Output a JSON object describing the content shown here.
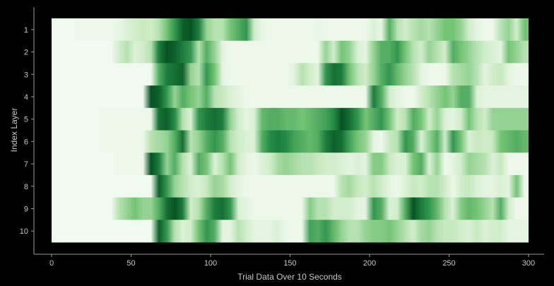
{
  "chart_data": {
    "type": "heatmap",
    "xlabel": "Trial Data Over 10 Seconds",
    "ylabel": "Index Layer",
    "xlim": [
      0,
      300
    ],
    "x_ticks": [
      "0",
      "50",
      "100",
      "150",
      "200",
      "250",
      "300"
    ],
    "x_tick_values": [
      0,
      50,
      100,
      150,
      200,
      250,
      300
    ],
    "rows": [
      "1",
      "2",
      "3",
      "4",
      "5",
      "6",
      "7",
      "8",
      "9",
      "10"
    ],
    "colormap": "Greens",
    "value_range": [
      0,
      1
    ],
    "bin_width": 5,
    "x_bins": [
      0,
      5,
      10,
      15,
      20,
      25,
      30,
      35,
      40,
      45,
      50,
      55,
      60,
      65,
      70,
      75,
      80,
      85,
      90,
      95,
      100,
      105,
      110,
      115,
      120,
      125,
      130,
      135,
      140,
      145,
      150,
      155,
      160,
      165,
      170,
      175,
      180,
      185,
      190,
      195,
      200,
      205,
      210,
      215,
      220,
      225,
      230,
      235,
      240,
      245,
      250,
      255,
      260,
      265,
      270,
      275,
      280,
      285,
      290,
      295
    ],
    "values": [
      [
        0.03,
        0.03,
        0.03,
        0.05,
        0.05,
        0.05,
        0.05,
        0.05,
        0.08,
        0.15,
        0.2,
        0.25,
        0.2,
        0.3,
        0.5,
        0.7,
        0.9,
        0.95,
        0.8,
        0.4,
        0.3,
        0.3,
        0.5,
        0.6,
        0.7,
        0.2,
        0.08,
        0.05,
        0.05,
        0.05,
        0.05,
        0.05,
        0.05,
        0.08,
        0.05,
        0.05,
        0.05,
        0.05,
        0.05,
        0.05,
        0.15,
        0.08,
        0.6,
        0.3,
        0.2,
        0.3,
        0.35,
        0.3,
        0.4,
        0.5,
        0.5,
        0.4,
        0.2,
        0.1,
        0.05,
        0.05,
        0.3,
        0.4,
        0.2,
        0.5
      ],
      [
        0.03,
        0.03,
        0.03,
        0.03,
        0.03,
        0.03,
        0.03,
        0.03,
        0.2,
        0.3,
        0.15,
        0.2,
        0.3,
        0.8,
        0.95,
        0.9,
        0.8,
        0.7,
        0.3,
        0.6,
        0.4,
        0.1,
        0.05,
        0.05,
        0.05,
        0.05,
        0.05,
        0.05,
        0.05,
        0.05,
        0.05,
        0.05,
        0.05,
        0.05,
        0.4,
        0.2,
        0.5,
        0.4,
        0.15,
        0.1,
        0.4,
        0.6,
        0.6,
        0.7,
        0.5,
        0.3,
        0.2,
        0.4,
        0.3,
        0.2,
        0.6,
        0.5,
        0.4,
        0.3,
        0.2,
        0.15,
        0.1,
        0.5,
        0.4,
        0.3
      ],
      [
        0.03,
        0.03,
        0.03,
        0.03,
        0.03,
        0.03,
        0.03,
        0.03,
        0.03,
        0.03,
        0.03,
        0.03,
        0.03,
        0.6,
        0.8,
        0.85,
        0.9,
        0.4,
        0.3,
        0.7,
        0.5,
        0.1,
        0.05,
        0.05,
        0.05,
        0.05,
        0.05,
        0.05,
        0.05,
        0.05,
        0.1,
        0.3,
        0.2,
        0.1,
        0.7,
        0.85,
        0.8,
        0.5,
        0.3,
        0.2,
        0.4,
        0.6,
        0.7,
        0.55,
        0.4,
        0.3,
        0.1,
        0.05,
        0.05,
        0.05,
        0.3,
        0.35,
        0.4,
        0.3,
        0.1,
        0.2,
        0.25,
        0.1,
        0.05,
        0.05
      ],
      [
        0.03,
        0.03,
        0.03,
        0.03,
        0.03,
        0.03,
        0.03,
        0.03,
        0.03,
        0.03,
        0.03,
        0.03,
        0.95,
        0.9,
        0.7,
        0.4,
        0.6,
        0.5,
        0.4,
        0.6,
        0.3,
        0.25,
        0.15,
        0.1,
        0.05,
        0.05,
        0.05,
        0.05,
        0.05,
        0.05,
        0.05,
        0.05,
        0.05,
        0.05,
        0.05,
        0.05,
        0.05,
        0.05,
        0.05,
        0.05,
        0.8,
        0.6,
        0.2,
        0.1,
        0.05,
        0.05,
        0.2,
        0.3,
        0.4,
        0.5,
        0.4,
        0.6,
        0.6,
        0.15,
        0.1,
        0.1,
        0.1,
        0.1,
        0.1,
        0.1
      ],
      [
        0.03,
        0.03,
        0.03,
        0.03,
        0.03,
        0.03,
        0.05,
        0.05,
        0.05,
        0.05,
        0.05,
        0.05,
        0.05,
        0.85,
        0.9,
        0.75,
        0.3,
        0.15,
        0.7,
        0.8,
        0.85,
        0.8,
        0.4,
        0.2,
        0.1,
        0.15,
        0.55,
        0.6,
        0.6,
        0.55,
        0.55,
        0.5,
        0.55,
        0.6,
        0.65,
        0.75,
        0.95,
        0.85,
        0.7,
        0.5,
        0.6,
        0.7,
        0.5,
        0.2,
        0.3,
        0.6,
        0.5,
        0.2,
        0.4,
        0.15,
        0.1,
        0.2,
        0.5,
        0.3,
        0.2,
        0.4,
        0.4,
        0.4,
        0.4,
        0.4
      ],
      [
        0.03,
        0.03,
        0.03,
        0.03,
        0.03,
        0.03,
        0.05,
        0.05,
        0.05,
        0.05,
        0.05,
        0.05,
        0.3,
        0.35,
        0.4,
        0.6,
        0.85,
        0.3,
        0.4,
        0.6,
        0.7,
        0.6,
        0.3,
        0.2,
        0.15,
        0.15,
        0.6,
        0.75,
        0.8,
        0.75,
        0.65,
        0.6,
        0.55,
        0.6,
        0.8,
        0.9,
        0.85,
        0.65,
        0.5,
        0.4,
        0.1,
        0.05,
        0.25,
        0.3,
        0.7,
        0.6,
        0.15,
        0.4,
        0.6,
        0.2,
        0.7,
        0.5,
        0.15,
        0.25,
        0.2,
        0.25,
        0.5,
        0.55,
        0.6,
        0.55
      ],
      [
        0.03,
        0.03,
        0.03,
        0.03,
        0.03,
        0.03,
        0.03,
        0.03,
        0.05,
        0.05,
        0.05,
        0.05,
        0.95,
        0.8,
        0.4,
        0.6,
        0.3,
        0.15,
        0.6,
        0.5,
        0.15,
        0.3,
        0.5,
        0.2,
        0.1,
        0.05,
        0.15,
        0.2,
        0.35,
        0.4,
        0.35,
        0.3,
        0.3,
        0.25,
        0.2,
        0.2,
        0.15,
        0.1,
        0.15,
        0.1,
        0.45,
        0.45,
        0.25,
        0.15,
        0.15,
        0.5,
        0.6,
        0.15,
        0.4,
        0.05,
        0.1,
        0.2,
        0.4,
        0.35,
        0.3,
        0.15,
        0.25,
        0.05,
        0.05,
        0.05
      ],
      [
        0.03,
        0.03,
        0.03,
        0.03,
        0.03,
        0.03,
        0.03,
        0.03,
        0.03,
        0.03,
        0.03,
        0.03,
        0.03,
        0.9,
        0.7,
        0.4,
        0.3,
        0.2,
        0.15,
        0.25,
        0.4,
        0.35,
        0.2,
        0.1,
        0.05,
        0.05,
        0.05,
        0.05,
        0.05,
        0.05,
        0.05,
        0.05,
        0.05,
        0.05,
        0.05,
        0.05,
        0.3,
        0.35,
        0.25,
        0.2,
        0.3,
        0.2,
        0.1,
        0.05,
        0.15,
        0.25,
        0.2,
        0.3,
        0.3,
        0.2,
        0.05,
        0.2,
        0.25,
        0.15,
        0.1,
        0.1,
        0.15,
        0.1,
        0.5,
        0.05
      ],
      [
        0.03,
        0.03,
        0.03,
        0.03,
        0.03,
        0.03,
        0.03,
        0.03,
        0.3,
        0.4,
        0.5,
        0.4,
        0.4,
        0.6,
        0.85,
        0.95,
        0.8,
        0.2,
        0.3,
        0.6,
        0.8,
        0.85,
        0.7,
        0.15,
        0.1,
        0.05,
        0.05,
        0.05,
        0.05,
        0.05,
        0.05,
        0.05,
        0.45,
        0.3,
        0.3,
        0.2,
        0.2,
        0.2,
        0.1,
        0.1,
        0.7,
        0.6,
        0.15,
        0.2,
        0.6,
        0.95,
        0.8,
        0.7,
        0.55,
        0.3,
        0.15,
        0.45,
        0.55,
        0.5,
        0.4,
        0.3,
        0.6,
        0.2,
        0.05,
        0.05
      ],
      [
        0.03,
        0.03,
        0.03,
        0.03,
        0.03,
        0.03,
        0.03,
        0.03,
        0.03,
        0.03,
        0.03,
        0.03,
        0.03,
        0.9,
        0.7,
        0.3,
        0.15,
        0.2,
        0.5,
        0.7,
        0.6,
        0.1,
        0.1,
        0.3,
        0.2,
        0.1,
        0.1,
        0.1,
        0.15,
        0.05,
        0.05,
        0.05,
        0.65,
        0.6,
        0.7,
        0.55,
        0.4,
        0.3,
        0.3,
        0.4,
        0.45,
        0.45,
        0.5,
        0.4,
        0.3,
        0.2,
        0.35,
        0.4,
        0.3,
        0.25,
        0.25,
        0.2,
        0.15,
        0.25,
        0.15,
        0.2,
        0.2,
        0.1,
        0.1,
        0.1
      ]
    ],
    "grid": false,
    "legend": "none"
  }
}
